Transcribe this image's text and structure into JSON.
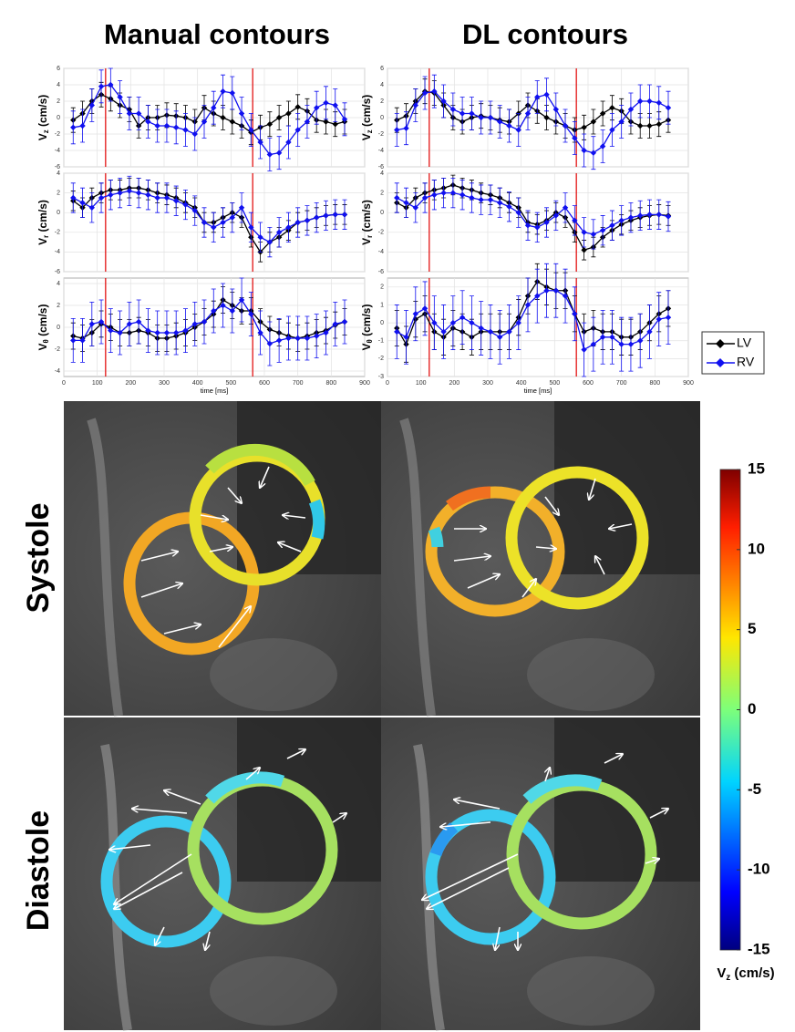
{
  "titles": [
    "Manual contours",
    "DL contours"
  ],
  "rows": [
    "Systole",
    "Diastole"
  ],
  "chart_data": [
    {
      "type": "line",
      "ylabel": {
        "symbol": "V",
        "subscript": "z",
        "unit": " (cm/s)"
      },
      "xlim": [
        0,
        900
      ],
      "ylim": [
        -6,
        6
      ],
      "yticks": [
        -6,
        -4,
        -2,
        0,
        2,
        4,
        6
      ],
      "grid": true,
      "vlines": [
        125,
        565
      ],
      "vline_color": "#e00000",
      "x": [
        28,
        56,
        84,
        112,
        140,
        168,
        196,
        224,
        252,
        280,
        308,
        336,
        364,
        392,
        420,
        448,
        476,
        504,
        532,
        560,
        588,
        616,
        644,
        672,
        700,
        728,
        756,
        784,
        812,
        840
      ],
      "series": [
        {
          "name": "LV",
          "color": "#000000",
          "error": 1.5,
          "values": [
            -0.3,
            0.5,
            2,
            2.8,
            2.3,
            1.5,
            1,
            -1,
            0,
            0,
            0.3,
            0.2,
            0,
            -0.5,
            1.2,
            0.5,
            0,
            -0.5,
            -1,
            -1.8,
            -1.2,
            -0.8,
            0,
            0.5,
            1.3,
            0.8,
            -0.3,
            -0.5,
            -0.8,
            -0.5
          ]
        },
        {
          "name": "RV",
          "color": "#1010f0",
          "error": 2,
          "values": [
            -1.2,
            -1,
            1.5,
            3.8,
            4,
            2.5,
            0.5,
            0.5,
            -0.5,
            -1,
            -1,
            -1.2,
            -1.5,
            -2,
            -0.5,
            1.2,
            3.2,
            3,
            0.5,
            -1.5,
            -3,
            -4.5,
            -4.3,
            -3,
            -1.5,
            -0.5,
            1.2,
            1.8,
            1.5,
            -0.2
          ]
        }
      ]
    },
    {
      "type": "line",
      "ylabel": {
        "symbol": "V",
        "subscript": "r",
        "unit": " (cm/s)"
      },
      "xlim": [
        0,
        900
      ],
      "ylim": [
        -6,
        4
      ],
      "yticks": [
        -6,
        -4,
        -2,
        0,
        2,
        4
      ],
      "grid": true,
      "vlines": [
        125,
        565
      ],
      "vline_color": "#e00000",
      "x": [
        28,
        56,
        84,
        112,
        140,
        168,
        196,
        224,
        252,
        280,
        308,
        336,
        364,
        392,
        420,
        448,
        476,
        504,
        532,
        560,
        588,
        616,
        644,
        672,
        700,
        728,
        756,
        784,
        812,
        840
      ],
      "series": [
        {
          "name": "LV",
          "color": "#000000",
          "error": 1,
          "values": [
            1.2,
            0.5,
            1.5,
            2,
            2.3,
            2.3,
            2.5,
            2.5,
            2.3,
            2,
            1.8,
            1.5,
            1,
            0.5,
            -1,
            -1,
            -0.5,
            0,
            -0.5,
            -2.5,
            -4,
            -3,
            -2.5,
            -1.8,
            -1,
            -0.8,
            -0.5,
            -0.3,
            -0.2,
            -0.2
          ]
        },
        {
          "name": "RV",
          "color": "#1010f0",
          "error": 1.5,
          "values": [
            1.5,
            1,
            0.5,
            1.5,
            1.8,
            2,
            2.2,
            2,
            1.8,
            1.5,
            1.5,
            1.2,
            0.8,
            0.2,
            -1,
            -1.5,
            -1,
            -0.5,
            0.5,
            -1.5,
            -2.5,
            -3,
            -2,
            -1.5,
            -1,
            -0.8,
            -0.5,
            -0.3,
            -0.2,
            -0.2
          ]
        }
      ]
    },
    {
      "type": "line",
      "ylabel": {
        "symbol": "V",
        "subscript": "θ",
        "unit": " (cm/s)"
      },
      "xlim": [
        0,
        900
      ],
      "ylim": [
        -4.5,
        4.5
      ],
      "yticks": [
        -4,
        -2,
        0,
        2,
        4
      ],
      "xticks": [
        0,
        100,
        200,
        300,
        400,
        500,
        600,
        700,
        800,
        900
      ],
      "xlabel": "time [ms]",
      "grid": true,
      "vlines": [
        125,
        565
      ],
      "vline_color": "#e00000",
      "x": [
        28,
        56,
        84,
        112,
        140,
        168,
        196,
        224,
        252,
        280,
        308,
        336,
        364,
        392,
        420,
        448,
        476,
        504,
        532,
        560,
        588,
        616,
        644,
        672,
        700,
        728,
        756,
        784,
        812,
        840
      ],
      "series": [
        {
          "name": "LV",
          "color": "#000000",
          "error": 1.2,
          "values": [
            -0.8,
            -1,
            -0.5,
            0.3,
            0,
            -0.5,
            -0.5,
            -0.3,
            -0.5,
            -1,
            -1,
            -0.8,
            -0.5,
            0,
            0.5,
            1.2,
            2.5,
            2,
            1.5,
            1.5,
            0.5,
            -0.2,
            -0.5,
            -0.8,
            -1,
            -0.8,
            -0.5,
            -0.3,
            0.2,
            0.5
          ]
        },
        {
          "name": "RV",
          "color": "#1010f0",
          "error": 2,
          "values": [
            -1.2,
            -1.2,
            0.3,
            0.5,
            -0.3,
            -0.5,
            0.3,
            0.5,
            -0.3,
            -0.5,
            -0.5,
            -0.5,
            -0.3,
            0.3,
            0.5,
            1.5,
            2,
            1.5,
            2.5,
            1.2,
            -0.5,
            -1.5,
            -1.2,
            -1,
            -1,
            -1,
            -0.8,
            -0.5,
            0.3,
            0.5
          ]
        }
      ]
    },
    {
      "type": "line",
      "ylabel": {
        "symbol": "V",
        "subscript": "z",
        "unit": " (cm/s)"
      },
      "xlim": [
        0,
        900
      ],
      "ylim": [
        -6,
        6
      ],
      "yticks": [
        -6,
        -4,
        -2,
        0,
        2,
        4,
        6
      ],
      "grid": true,
      "vlines": [
        125,
        565
      ],
      "vline_color": "#e00000",
      "x": [
        28,
        56,
        84,
        112,
        140,
        168,
        196,
        224,
        252,
        280,
        308,
        336,
        364,
        392,
        420,
        448,
        476,
        504,
        532,
        560,
        588,
        616,
        644,
        672,
        700,
        728,
        756,
        784,
        812,
        840
      ],
      "series": [
        {
          "name": "LV",
          "color": "#000000",
          "error": 1.5,
          "values": [
            -0.3,
            0.2,
            2,
            3.2,
            3,
            1.5,
            0,
            -0.5,
            0,
            0.2,
            0,
            -0.3,
            -0.5,
            0.5,
            1.5,
            0.8,
            0,
            -0.5,
            -1,
            -1.5,
            -1.2,
            -0.5,
            0.5,
            1.2,
            0.8,
            -0.5,
            -1,
            -1,
            -0.8,
            -0.3
          ]
        },
        {
          "name": "RV",
          "color": "#1010f0",
          "error": 2,
          "values": [
            -1.5,
            -1.3,
            1.5,
            3,
            3.2,
            2,
            1,
            0.5,
            0.5,
            0,
            0,
            -0.5,
            -1,
            -1.5,
            0.5,
            2.5,
            2.8,
            1,
            -1,
            -2.5,
            -4,
            -4.3,
            -3.5,
            -1.5,
            -0.5,
            1,
            2,
            2,
            1.8,
            1.2
          ]
        }
      ]
    },
    {
      "type": "line",
      "ylabel": {
        "symbol": "V",
        "subscript": "r",
        "unit": " (cm/s)"
      },
      "xlim": [
        0,
        900
      ],
      "ylim": [
        -6,
        4
      ],
      "yticks": [
        -6,
        -4,
        -2,
        0,
        2,
        4
      ],
      "grid": true,
      "vlines": [
        125,
        565
      ],
      "vline_color": "#e00000",
      "x": [
        28,
        56,
        84,
        112,
        140,
        168,
        196,
        224,
        252,
        280,
        308,
        336,
        364,
        392,
        420,
        448,
        476,
        504,
        532,
        560,
        588,
        616,
        644,
        672,
        700,
        728,
        756,
        784,
        812,
        840
      ],
      "series": [
        {
          "name": "LV",
          "color": "#000000",
          "error": 1,
          "values": [
            1,
            0.5,
            1.5,
            2,
            2.3,
            2.5,
            2.8,
            2.5,
            2.3,
            2,
            1.8,
            1.5,
            1,
            0.5,
            -1,
            -1.2,
            -0.8,
            0,
            -0.5,
            -2,
            -3.8,
            -3.5,
            -2.5,
            -1.8,
            -1.2,
            -0.8,
            -0.5,
            -0.3,
            -0.2,
            -0.3
          ]
        },
        {
          "name": "RV",
          "color": "#1010f0",
          "error": 1.5,
          "values": [
            1.5,
            1,
            0.5,
            1.5,
            1.8,
            2,
            2,
            1.8,
            1.5,
            1.3,
            1.3,
            1,
            0.6,
            0,
            -1.3,
            -1.5,
            -1,
            -0.3,
            0.5,
            -0.8,
            -2,
            -2.2,
            -1.8,
            -1.3,
            -0.8,
            -0.5,
            -0.3,
            -0.2,
            -0.2,
            -0.4
          ]
        }
      ]
    },
    {
      "type": "line",
      "ylabel": {
        "symbol": "V",
        "subscript": "θ",
        "unit": " (cm/s)"
      },
      "xlim": [
        0,
        900
      ],
      "ylim": [
        -3,
        2.5
      ],
      "yticks": [
        -3,
        -2,
        -1,
        0,
        1,
        2
      ],
      "xticks": [
        0,
        100,
        200,
        300,
        400,
        500,
        600,
        700,
        800,
        900
      ],
      "xlabel": "time [ms]",
      "grid": true,
      "vlines": [
        125,
        565
      ],
      "vline_color": "#e00000",
      "x": [
        28,
        56,
        84,
        112,
        140,
        168,
        196,
        224,
        252,
        280,
        308,
        336,
        364,
        392,
        420,
        448,
        476,
        504,
        532,
        560,
        588,
        616,
        644,
        672,
        700,
        728,
        756,
        784,
        812,
        840
      ],
      "series": [
        {
          "name": "LV",
          "color": "#000000",
          "error": 1,
          "values": [
            -0.3,
            -1.2,
            0.2,
            0.5,
            -0.5,
            -0.8,
            -0.3,
            -0.5,
            -0.8,
            -0.5,
            -0.5,
            -0.5,
            -0.5,
            0.3,
            1.5,
            2.3,
            2,
            1.8,
            1.8,
            0.5,
            -0.5,
            -0.3,
            -0.5,
            -0.5,
            -0.8,
            -0.8,
            -0.5,
            0,
            0.5,
            0.8
          ]
        },
        {
          "name": "RV",
          "color": "#1010f0",
          "error": 1.5,
          "values": [
            -0.5,
            -0.8,
            0.5,
            0.8,
            0,
            -0.5,
            0,
            0.3,
            0,
            -0.3,
            -0.5,
            -0.8,
            -0.5,
            0,
            1,
            1.5,
            1.8,
            1.8,
            1.5,
            0.5,
            -1.5,
            -1.2,
            -0.8,
            -0.8,
            -1.2,
            -1.2,
            -1,
            -0.5,
            0.2,
            0.3
          ]
        }
      ]
    }
  ],
  "colorbar": {
    "lim": [
      -15,
      15
    ],
    "ticks": [
      15,
      10,
      5,
      0,
      -5,
      -10,
      -15
    ],
    "label": {
      "symbol": "V",
      "subscript": "z",
      "unit": " (cm/s)"
    }
  }
}
